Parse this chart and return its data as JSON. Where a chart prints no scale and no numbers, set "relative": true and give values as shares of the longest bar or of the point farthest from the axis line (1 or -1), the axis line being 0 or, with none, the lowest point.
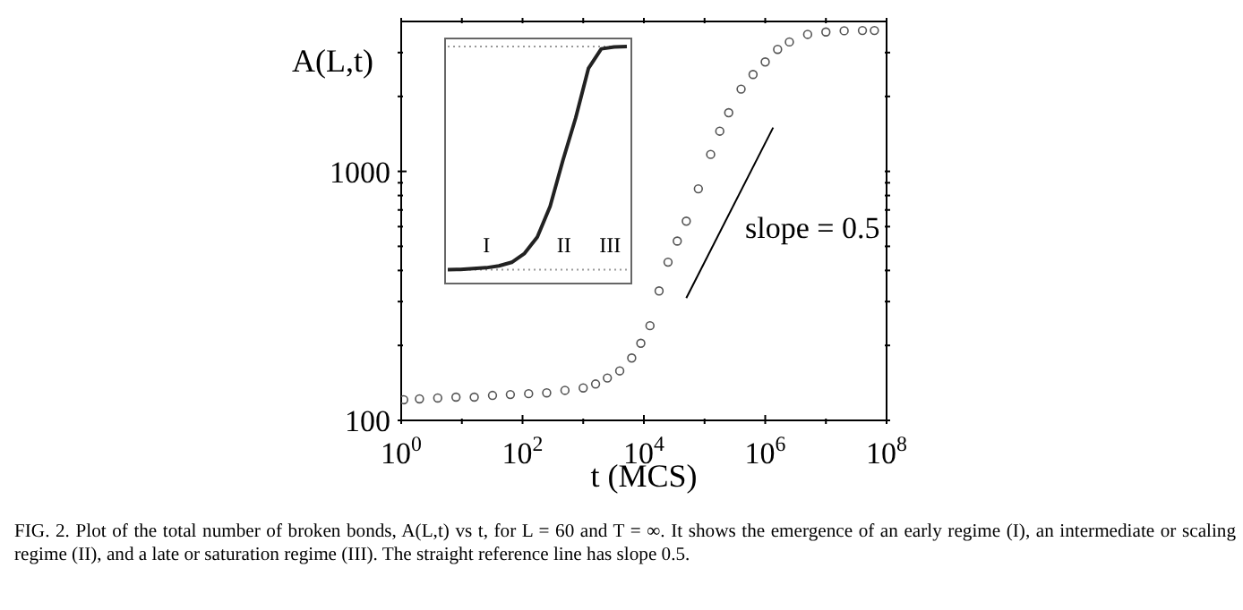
{
  "chart_data": [
    {
      "type": "scatter",
      "xlabel": "t (MCS)",
      "ylabel": "A(L,t)",
      "log": "xy",
      "xlim": [
        1,
        100000000
      ],
      "ylim": [
        100,
        4000
      ],
      "xticks": [
        {
          "value": 1,
          "label": "10$^{0}$"
        },
        {
          "value": 10,
          "label": null
        },
        {
          "value": 100,
          "label": "10$^{2}$"
        },
        {
          "value": 1000,
          "label": null
        },
        {
          "value": 10000,
          "label": "10$^{4}$"
        },
        {
          "value": 100000,
          "label": null
        },
        {
          "value": 1000000,
          "label": "10$^{6}$"
        },
        {
          "value": 10000000,
          "label": null
        },
        {
          "value": 100000000,
          "label": "10$^{8}$"
        }
      ],
      "yticks": [
        100,
        {
          "value": 200,
          "label": null
        },
        {
          "value": 300,
          "label": null
        },
        {
          "value": 400,
          "label": null
        },
        {
          "value": 500,
          "label": null
        },
        {
          "value": 600,
          "label": null
        },
        {
          "value": 700,
          "label": null
        },
        {
          "value": 800,
          "label": null
        },
        {
          "value": 900,
          "label": null
        },
        1000,
        {
          "value": 2000,
          "label": null
        },
        {
          "value": 3000,
          "label": null
        }
      ],
      "series": [
        {
          "color": "#555555",
          "marker": "circle",
          "x": [
            1.1,
            2,
            4,
            8,
            16,
            32,
            63,
            126,
            250,
            500,
            1000,
            1600,
            2500,
            4000,
            6300,
            8900,
            12600,
            17800,
            25000,
            35500,
            50000,
            79000,
            126000,
            178000,
            250000,
            400000,
            630000,
            1000000,
            1600000,
            2500000,
            5000000,
            10000000,
            20000000,
            40000000,
            63000000
          ],
          "values": [
            121,
            122,
            123,
            124,
            124,
            126,
            127,
            128,
            129,
            132,
            135,
            140,
            148,
            158,
            178,
            204,
            240,
            331,
            432,
            525,
            631,
            851,
            1170,
            1450,
            1720,
            2140,
            2450,
            2750,
            3090,
            3310,
            3550,
            3630,
            3670,
            3680,
            3680
          ]
        },
        {
          "type": "line",
          "color": "#000000",
          "x": [
            50000,
            1350000
          ],
          "values": [
            310,
            1500
          ]
        }
      ],
      "annotations": [
        "slope = 0.5",
        "FIG. 2. Plot of the total number of broken bonds, A(L,t) vs t, for L = 60 and T = ∞. It shows the emergence of an early regime (I), an intermediate or scaling regime (II), and a late  or saturation regime (III). The straight reference line has slope 0.5."
      ]
    },
    {
      "type": "line",
      "relative": true,
      "categories": [
        null,
        null,
        null,
        null,
        null,
        null,
        null,
        null,
        null,
        null,
        null,
        null,
        null,
        null,
        null
      ],
      "series": [
        {
          "color": "#222222",
          "values": [
            0.055,
            0.056,
            0.06,
            0.063,
            0.071,
            0.086,
            0.124,
            0.193,
            0.323,
            0.518,
            0.698,
            0.908,
            0.99,
            0.998,
            1
          ]
        }
      ],
      "ref_lines": [
        {
          "axis": "y",
          "value": 0.055,
          "line_style": "dotted",
          "color": "#999999"
        },
        {
          "axis": "y",
          "value": 1,
          "line_style": "dotted",
          "color": "#999999"
        }
      ],
      "annotations": [
        "I",
        "II",
        "III"
      ]
    }
  ]
}
